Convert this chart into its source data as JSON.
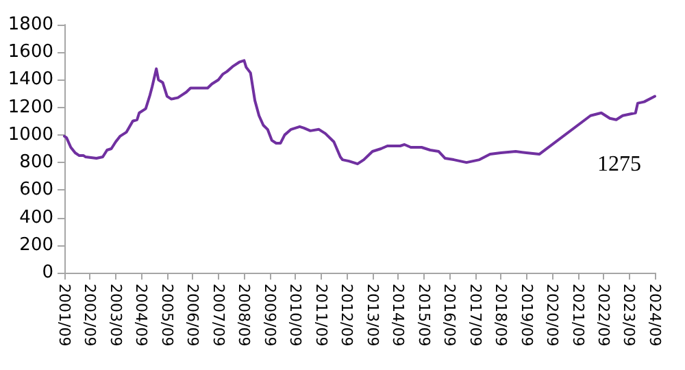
{
  "chart_data": {
    "type": "line",
    "x": [
      "2001-09",
      "2001-10",
      "2001-12",
      "2002-02",
      "2002-04",
      "2002-06",
      "2002-07",
      "2002-12",
      "2003-03",
      "2003-05",
      "2003-07",
      "2003-09",
      "2003-11",
      "2004-02",
      "2004-05",
      "2004-07",
      "2004-08",
      "2004-11",
      "2005-01",
      "2005-02",
      "2005-04",
      "2005-05",
      "2005-07",
      "2005-09",
      "2005-11",
      "2006-02",
      "2006-04",
      "2006-06",
      "2006-08",
      "2007-04",
      "2007-06",
      "2007-09",
      "2007-11",
      "2008-01",
      "2008-04",
      "2008-07",
      "2008-09",
      "2008-10",
      "2008-12",
      "2009-02",
      "2009-04",
      "2009-06",
      "2009-08",
      "2009-10",
      "2009-12",
      "2010-02",
      "2010-04",
      "2010-07",
      "2010-11",
      "2011-01",
      "2011-04",
      "2011-08",
      "2011-11",
      "2012-03",
      "2012-06",
      "2012-07",
      "2012-10",
      "2013-02",
      "2013-05",
      "2013-09",
      "2014-01",
      "2014-04",
      "2014-10",
      "2014-12",
      "2015-03",
      "2015-08",
      "2015-12",
      "2016-04",
      "2016-07",
      "2016-11",
      "2017-05",
      "2017-11",
      "2018-04",
      "2018-09",
      "2019-04",
      "2019-09",
      "2020-03",
      "2022-03",
      "2022-08",
      "2022-12",
      "2023-03",
      "2023-06",
      "2023-12",
      "2024-01",
      "2024-04",
      "2024-09"
    ],
    "series": [
      {
        "color": "#7030a0",
        "values": [
          990,
          980,
          910,
          870,
          850,
          850,
          840,
          830,
          840,
          890,
          900,
          950,
          990,
          1020,
          1100,
          1110,
          1160,
          1190,
          1290,
          1350,
          1480,
          1400,
          1380,
          1280,
          1260,
          1270,
          1290,
          1310,
          1340,
          1340,
          1370,
          1400,
          1440,
          1460,
          1500,
          1530,
          1540,
          1490,
          1450,
          1250,
          1140,
          1070,
          1040,
          960,
          940,
          940,
          1000,
          1040,
          1060,
          1050,
          1030,
          1040,
          1010,
          950,
          840,
          820,
          810,
          790,
          820,
          880,
          900,
          920,
          920,
          930,
          910,
          910,
          890,
          880,
          830,
          820,
          800,
          820,
          860,
          870,
          880,
          870,
          860,
          1140,
          1160,
          1120,
          1110,
          1140,
          1160,
          1230,
          1240,
          1280
        ]
      }
    ],
    "xlim": [
      "2001-09",
      "2024-09"
    ],
    "xticks": [
      {
        "value": "2001-09",
        "label": "2001/09"
      },
      {
        "value": "2002-09",
        "label": "2002/09"
      },
      {
        "value": "2003-09",
        "label": "2003/09"
      },
      {
        "value": "2004-09",
        "label": "2004/09"
      },
      {
        "value": "2005-09",
        "label": "2005/09"
      },
      {
        "value": "2006-09",
        "label": "2006/09"
      },
      {
        "value": "2007-09",
        "label": "2007/09"
      },
      {
        "value": "2008-09",
        "label": "2008/09"
      },
      {
        "value": "2009-09",
        "label": "2009/09"
      },
      {
        "value": "2010-09",
        "label": "2010/09"
      },
      {
        "value": "2011-09",
        "label": "2011/09"
      },
      {
        "value": "2012-09",
        "label": "2012/09"
      },
      {
        "value": "2013-09",
        "label": "2013/09"
      },
      {
        "value": "2014-09",
        "label": "2014/09"
      },
      {
        "value": "2015-09",
        "label": "2015/09"
      },
      {
        "value": "2016-09",
        "label": "2016/09"
      },
      {
        "value": "2017-09",
        "label": "2017/09"
      },
      {
        "value": "2018-09",
        "label": "2018/09"
      },
      {
        "value": "2019-09",
        "label": "2019/09"
      },
      {
        "value": "2020-09",
        "label": "2020/09"
      },
      {
        "value": "2021-09",
        "label": "2021/09"
      },
      {
        "value": "2022-09",
        "label": "2022/09"
      },
      {
        "value": "2023-09",
        "label": "2023/09"
      },
      {
        "value": "2024-09",
        "label": "2024/09"
      }
    ],
    "ylim": [
      0,
      1800
    ],
    "yticks": [
      0,
      200,
      400,
      600,
      800,
      1000,
      1200,
      1400,
      1600,
      1800
    ],
    "grid": false,
    "marker": "none",
    "line_style": "solid",
    "annotations": [
      "1275"
    ]
  }
}
